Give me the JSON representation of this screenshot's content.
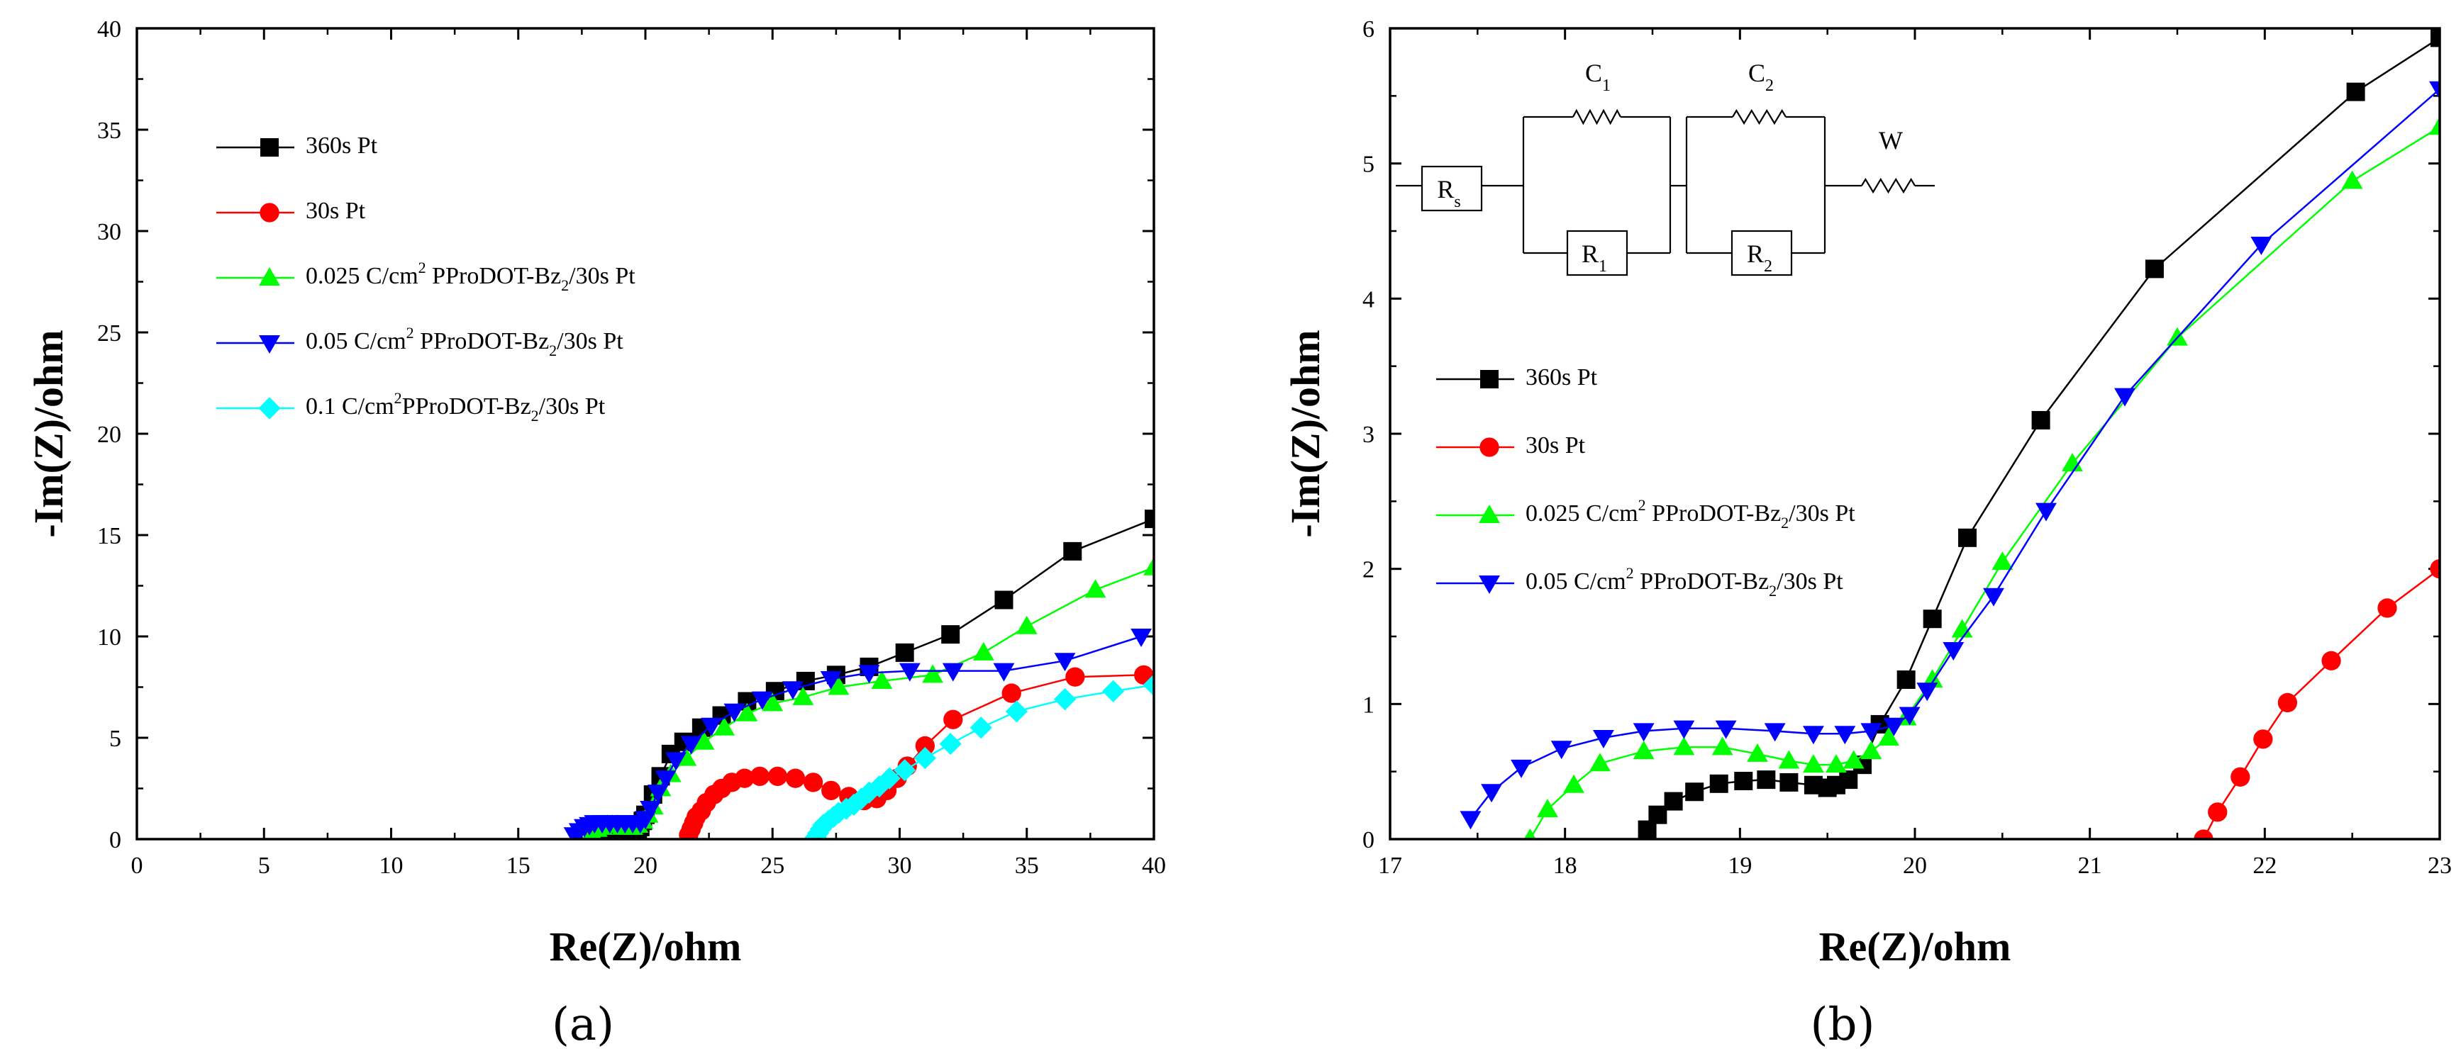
{
  "chart_data": [
    {
      "type": "scatter",
      "panel_label": "(a)",
      "xlabel": "Re(Z)/ohm",
      "ylabel": "-Im(Z)/ohm",
      "xlim": [
        0,
        40
      ],
      "ylim": [
        0,
        40
      ],
      "xticks": [
        0,
        5,
        10,
        15,
        20,
        25,
        30,
        35,
        40
      ],
      "yticks": [
        0,
        5,
        10,
        15,
        20,
        25,
        30,
        35,
        40
      ],
      "legend_position": "top-left",
      "series": [
        {
          "name": "360s Pt",
          "label_parts": [
            "360s Pt"
          ],
          "color": "#000000",
          "marker": "square",
          "x": [
            18.5,
            18.6,
            18.8,
            19.0,
            19.2,
            19.4,
            19.6,
            19.7,
            19.8,
            19.9,
            20.0,
            20.3,
            20.6,
            21.0,
            21.5,
            22.2,
            23.0,
            24.0,
            25.1,
            26.3,
            27.5,
            28.8,
            30.2,
            32.0,
            34.1,
            36.8,
            40.0
          ],
          "y": [
            0.1,
            0.2,
            0.3,
            0.4,
            0.4,
            0.4,
            0.4,
            0.5,
            0.6,
            0.9,
            1.2,
            2.2,
            3.1,
            4.2,
            4.8,
            5.5,
            6.1,
            6.8,
            7.3,
            7.8,
            8.1,
            8.5,
            9.2,
            10.1,
            11.8,
            14.2,
            15.8
          ]
        },
        {
          "name": "30s Pt",
          "label_parts": [
            "30s Pt"
          ],
          "color": "#ff0000",
          "marker": "circle",
          "x": [
            21.7,
            21.8,
            21.9,
            22.0,
            22.2,
            22.4,
            22.7,
            23.0,
            23.4,
            23.9,
            24.5,
            25.2,
            25.9,
            26.6,
            27.3,
            28.0,
            28.6,
            29.1,
            29.5,
            29.9,
            30.3,
            31.0,
            32.1,
            34.4,
            36.9,
            39.6
          ],
          "y": [
            0.2,
            0.5,
            0.8,
            1.1,
            1.4,
            1.8,
            2.2,
            2.5,
            2.8,
            3.0,
            3.1,
            3.1,
            3.0,
            2.8,
            2.4,
            2.1,
            1.9,
            2.0,
            2.4,
            3.0,
            3.6,
            4.6,
            5.9,
            7.2,
            8.0,
            8.1
          ]
        },
        {
          "name": "0.025 C/cm2 PProDOT-Bz2/30s Pt",
          "label_parts": [
            "0.025 C/cm",
            "2",
            " PProDOT-Bz",
            "2",
            "/30s Pt"
          ],
          "color": "#00ff00",
          "marker": "triangle-up",
          "x": [
            17.8,
            17.9,
            18.1,
            18.3,
            18.5,
            18.7,
            18.9,
            19.1,
            19.3,
            19.5,
            19.7,
            19.9,
            20.1,
            20.3,
            20.6,
            21.0,
            21.6,
            22.3,
            23.1,
            24.0,
            25.0,
            26.2,
            27.6,
            29.3,
            31.3,
            33.3,
            35.0,
            37.7,
            40.0
          ],
          "y": [
            0.1,
            0.3,
            0.5,
            0.6,
            0.7,
            0.7,
            0.7,
            0.6,
            0.6,
            0.6,
            0.7,
            0.9,
            1.2,
            1.6,
            2.5,
            3.2,
            4.0,
            4.8,
            5.5,
            6.2,
            6.7,
            7.0,
            7.5,
            7.8,
            8.1,
            9.2,
            10.5,
            12.3,
            13.4
          ]
        },
        {
          "name": "0.05 C/cm2 PProDOT-Bz2/30s Pt",
          "label_parts": [
            "0.05 C/cm",
            "2",
            " PProDOT-Bz",
            "2",
            "/30s Pt"
          ],
          "color": "#0000ff",
          "marker": "triangle-down",
          "x": [
            17.2,
            17.4,
            17.6,
            17.8,
            18.0,
            18.3,
            18.6,
            18.9,
            19.2,
            19.5,
            19.8,
            20.0,
            20.2,
            20.5,
            20.8,
            21.2,
            21.8,
            22.6,
            23.5,
            24.6,
            25.8,
            27.3,
            28.8,
            30.4,
            32.1,
            34.1,
            36.5,
            39.5
          ],
          "y": [
            0.2,
            0.4,
            0.6,
            0.7,
            0.8,
            0.8,
            0.8,
            0.8,
            0.8,
            0.8,
            0.8,
            1.0,
            1.5,
            2.3,
            3.0,
            3.9,
            4.7,
            5.6,
            6.3,
            6.9,
            7.4,
            7.9,
            8.2,
            8.3,
            8.3,
            8.3,
            8.8,
            10.0
          ]
        },
        {
          "name": "0.1 C/cm2PProDOT-Bz2/30s Pt",
          "label_parts": [
            "0.1 C/cm",
            "2",
            "PProDOT-Bz",
            "2",
            "/30s Pt"
          ],
          "color": "#00ffff",
          "marker": "diamond",
          "x": [
            26.7,
            26.8,
            26.9,
            27.0,
            27.2,
            27.4,
            27.6,
            27.9,
            28.2,
            28.5,
            28.8,
            29.2,
            29.6,
            30.2,
            31.0,
            32.0,
            33.2,
            34.6,
            36.5,
            38.4,
            40.0
          ],
          "y": [
            0.1,
            0.3,
            0.5,
            0.7,
            0.9,
            1.1,
            1.3,
            1.5,
            1.7,
            2.0,
            2.3,
            2.6,
            3.0,
            3.4,
            4.0,
            4.7,
            5.5,
            6.3,
            6.9,
            7.3,
            7.6
          ]
        }
      ]
    },
    {
      "type": "scatter",
      "panel_label": "(b)",
      "xlabel": "Re(Z)/ohm",
      "ylabel": "-Im(Z)/ohm",
      "xlim": [
        17,
        23
      ],
      "ylim": [
        0,
        6
      ],
      "xticks": [
        17,
        18,
        19,
        20,
        21,
        22,
        23
      ],
      "yticks": [
        0,
        1,
        2,
        3,
        4,
        5,
        6
      ],
      "legend_position": "middle-left",
      "inset": {
        "title": "equivalent circuit",
        "labels": [
          {
            "text": "R",
            "sub": "s"
          },
          {
            "text": "C",
            "sub": "1"
          },
          {
            "text": "R",
            "sub": "1"
          },
          {
            "text": "C",
            "sub": "2"
          },
          {
            "text": "R",
            "sub": "2"
          },
          {
            "text": "W",
            "sub": ""
          }
        ]
      },
      "series": [
        {
          "name": "360s Pt",
          "label_parts": [
            "360s Pt"
          ],
          "color": "#000000",
          "marker": "square",
          "x": [
            18.47,
            18.53,
            18.62,
            18.74,
            18.88,
            19.02,
            19.15,
            19.28,
            19.42,
            19.5,
            19.55,
            19.62,
            19.7,
            19.8,
            19.95,
            20.1,
            20.3,
            20.72,
            21.37,
            22.52,
            23.0
          ],
          "y": [
            0.07,
            0.18,
            0.28,
            0.35,
            0.41,
            0.43,
            0.44,
            0.42,
            0.4,
            0.38,
            0.4,
            0.44,
            0.55,
            0.85,
            1.18,
            1.63,
            2.23,
            3.1,
            4.22,
            5.53,
            5.93
          ]
        },
        {
          "name": "30s Pt",
          "label_parts": [
            "30s Pt"
          ],
          "color": "#ff0000",
          "marker": "circle",
          "x": [
            21.65,
            21.73,
            21.86,
            21.99,
            22.13,
            22.38,
            22.7,
            23.0
          ],
          "y": [
            0.0,
            0.2,
            0.46,
            0.74,
            1.01,
            1.32,
            1.71,
            2.0
          ]
        },
        {
          "name": "0.025 C/cm2 PProDOT-Bz2/30s Pt",
          "label_parts": [
            "0.025 C/cm",
            "2",
            " PProDOT-Bz",
            "2",
            "/30s Pt"
          ],
          "color": "#00ff00",
          "marker": "triangle-up",
          "x": [
            17.8,
            17.9,
            18.05,
            18.2,
            18.45,
            18.68,
            18.9,
            19.1,
            19.28,
            19.42,
            19.55,
            19.65,
            19.75,
            19.85,
            19.95,
            20.1,
            20.27,
            20.5,
            20.9,
            21.5,
            22.5,
            23.0
          ],
          "y": [
            0.0,
            0.22,
            0.4,
            0.56,
            0.65,
            0.68,
            0.68,
            0.63,
            0.58,
            0.55,
            0.55,
            0.58,
            0.65,
            0.75,
            0.9,
            1.18,
            1.55,
            2.05,
            2.78,
            3.71,
            4.87,
            5.27
          ]
        },
        {
          "name": "0.05 C/cm2 PProDOT-Bz2/30s Pt",
          "label_parts": [
            "0.05 C/cm",
            "2",
            " PProDOT-Bz",
            "2",
            "/30s Pt"
          ],
          "color": "#0000ff",
          "marker": "triangle-down",
          "x": [
            17.46,
            17.58,
            17.75,
            17.98,
            18.22,
            18.45,
            18.68,
            18.92,
            19.2,
            19.42,
            19.6,
            19.75,
            19.88,
            19.97,
            20.07,
            20.22,
            20.45,
            20.75,
            21.2,
            21.98,
            23.0
          ],
          "y": [
            0.15,
            0.35,
            0.53,
            0.67,
            0.75,
            0.8,
            0.82,
            0.82,
            0.8,
            0.78,
            0.78,
            0.8,
            0.84,
            0.92,
            1.1,
            1.4,
            1.8,
            2.43,
            3.28,
            4.4,
            5.55
          ]
        }
      ]
    }
  ]
}
